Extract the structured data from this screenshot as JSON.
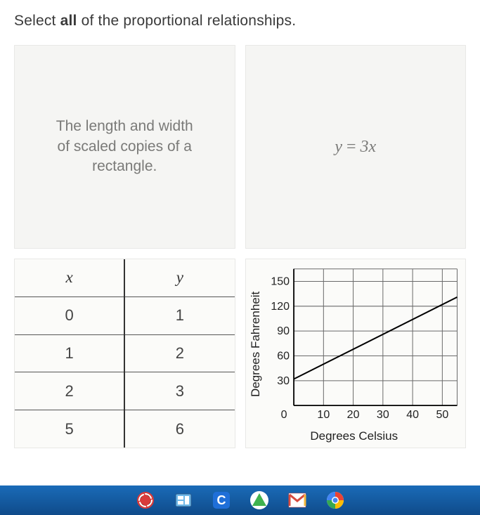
{
  "question": {
    "prefix": "Select ",
    "bold": "all",
    "suffix": " of the proportional relationships."
  },
  "card_rectangle": {
    "line1": "The length and width",
    "line2": "of scaled copies of a",
    "line3": "rectangle."
  },
  "card_equation": {
    "lhs": "y",
    "eq": " = ",
    "rhs": "3x"
  },
  "table": {
    "headers": [
      "x",
      "y"
    ],
    "rows": [
      [
        "0",
        "1"
      ],
      [
        "1",
        "2"
      ],
      [
        "2",
        "3"
      ],
      [
        "5",
        "6"
      ]
    ]
  },
  "chart": {
    "type": "line",
    "ylabel": "Degrees Fahrenheit",
    "xlabel": "Degrees Celsius",
    "xlim": [
      0,
      55
    ],
    "ylim": [
      0,
      165
    ],
    "xticks": [
      0,
      10,
      20,
      30,
      40,
      50
    ],
    "yticks": [
      30,
      60,
      90,
      120,
      150
    ],
    "xtick_labels": [
      "0",
      "10",
      "20",
      "30",
      "40",
      "50"
    ],
    "ytick_labels": [
      "30",
      "60",
      "90",
      "120",
      "150"
    ],
    "origin_label": "0",
    "grid_color": "#6a6a6a",
    "axis_color": "#000000",
    "line_color": "#000000",
    "line_width": 2,
    "background_color": "#fbfbf9",
    "tick_fontsize": 16,
    "label_fontsize": 17,
    "line_points": [
      [
        0,
        32
      ],
      [
        55,
        131
      ]
    ]
  },
  "taskbar": {
    "icons": [
      "spinner-icon",
      "panel-icon",
      "c-icon",
      "triangle-icon",
      "m-icon",
      "circle-icon"
    ]
  }
}
